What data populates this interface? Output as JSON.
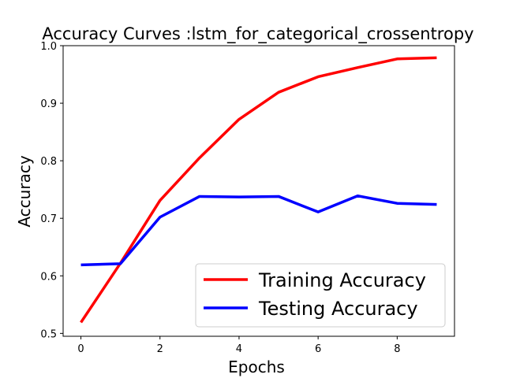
{
  "chart_data": {
    "type": "line",
    "title": "Accuracy Curves :lstm_for_categorical_crossentropy",
    "xlabel": "Epochs",
    "ylabel": "Accuracy",
    "x": [
      0,
      1,
      2,
      3,
      4,
      5,
      6,
      7,
      8,
      9
    ],
    "xlim": [
      -0.45,
      9.45
    ],
    "ylim": [
      0.495,
      1.0
    ],
    "xticks": [
      0,
      2,
      4,
      6,
      8
    ],
    "xtick_labels": [
      "0",
      "2",
      "4",
      "6",
      "8"
    ],
    "yticks": [
      0.5,
      0.6,
      0.7,
      0.8,
      0.9,
      1.0
    ],
    "ytick_labels": [
      "0.5",
      "0.6",
      "0.7",
      "0.8",
      "0.9",
      "1.0"
    ],
    "grid": false,
    "legend_position": "bottom-right",
    "series": [
      {
        "name": "Training Accuracy",
        "color": "#ff0000",
        "values": [
          0.519,
          0.622,
          0.731,
          0.805,
          0.872,
          0.919,
          0.946,
          0.962,
          0.977,
          0.979
        ]
      },
      {
        "name": "Testing Accuracy",
        "color": "#0000ff",
        "values": [
          0.619,
          0.621,
          0.702,
          0.738,
          0.737,
          0.738,
          0.711,
          0.739,
          0.726,
          0.724
        ]
      }
    ]
  }
}
